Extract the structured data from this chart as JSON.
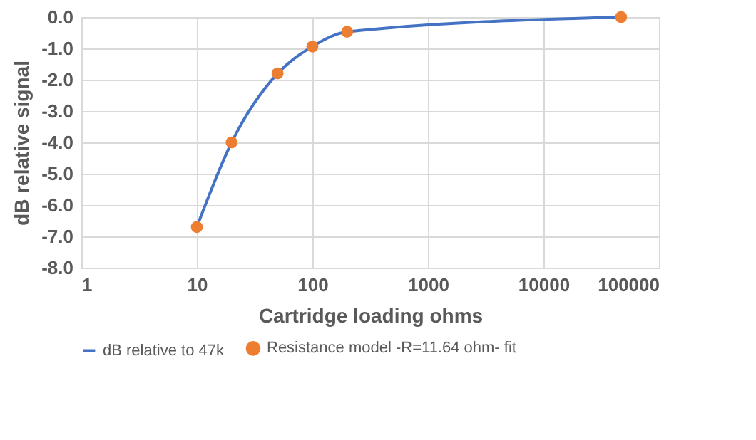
{
  "chart_data": {
    "type": "line",
    "xlabel": "Cartridge loading ohms",
    "ylabel": "dB relative signal",
    "log": "x",
    "grid": true,
    "legend": "bottom",
    "xlim": [
      1,
      100000
    ],
    "xticks": [
      1,
      10,
      100,
      1000,
      10000,
      100000
    ],
    "ylim": [
      -8,
      0
    ],
    "yticks": [
      {
        "value": 0,
        "label": "0.0"
      },
      {
        "value": -1,
        "label": "-1.0"
      },
      {
        "value": -2,
        "label": "-2.0"
      },
      {
        "value": -3,
        "label": "-3.0"
      },
      {
        "value": -4,
        "label": "-4.0"
      },
      {
        "value": -5,
        "label": "-5.0"
      },
      {
        "value": -6,
        "label": "-6.0"
      },
      {
        "value": -7,
        "label": "-7.0"
      },
      {
        "value": -8,
        "label": "-8.0"
      }
    ],
    "series": [
      {
        "name": "dB relative to 47k",
        "type": "line",
        "color": "#4472c4",
        "marker": "none",
        "x": [
          10,
          20,
          50,
          100,
          200,
          47000
        ],
        "values": [
          -6.7,
          -4.0,
          -1.8,
          -0.94,
          -0.47,
          0
        ]
      },
      {
        "name": "Resistance model -R=11.64 ohm- fit",
        "type": "scatter",
        "color": "#ed7d31",
        "marker": "circle",
        "x": [
          10,
          20,
          50,
          100,
          200,
          47000
        ],
        "values": [
          -6.7,
          -4.0,
          -1.8,
          -0.94,
          -0.47,
          0
        ]
      }
    ]
  }
}
